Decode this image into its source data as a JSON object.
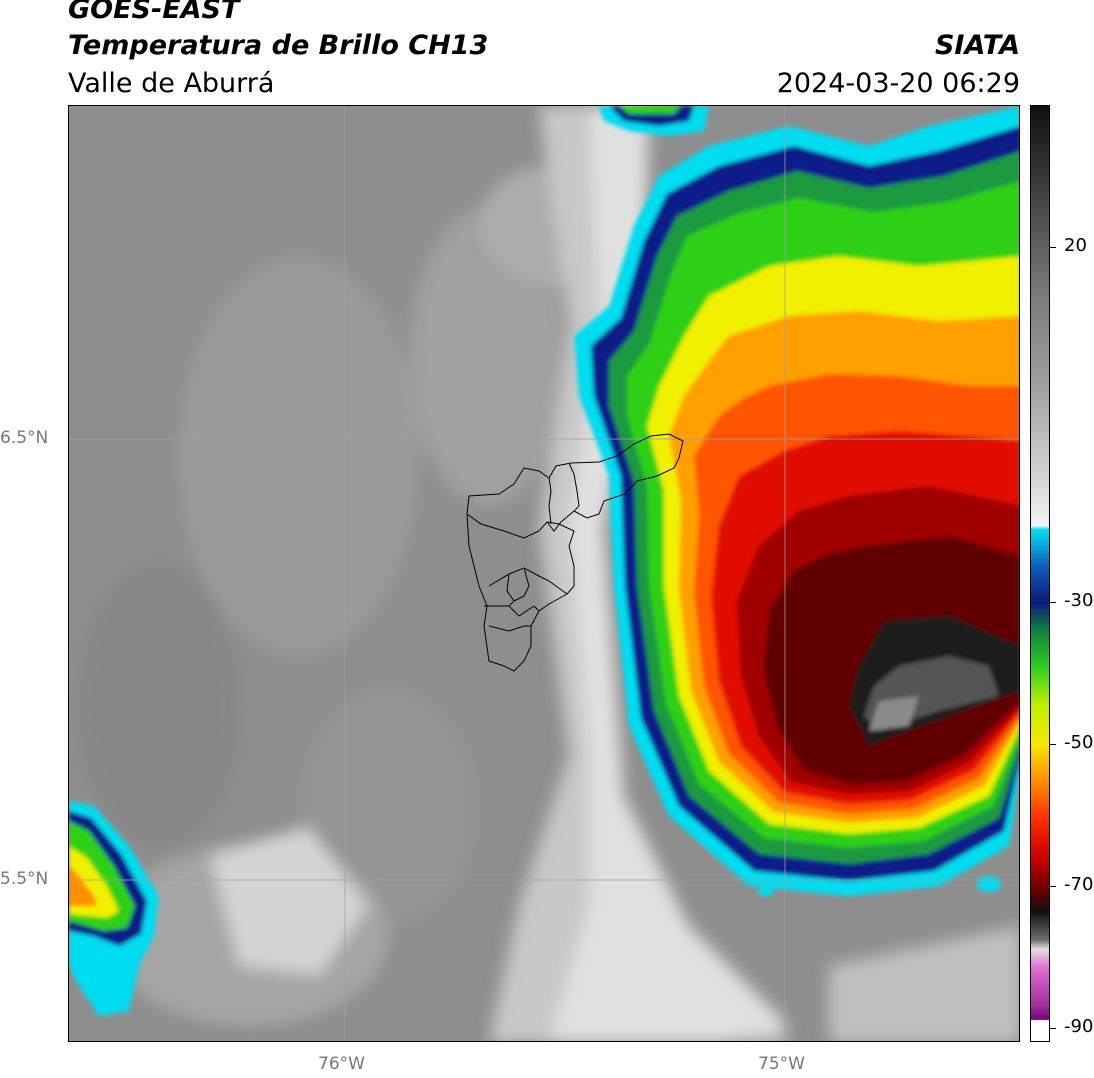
{
  "header": {
    "satellite": "GOES-EAST",
    "product": "Temperatura de Brillo CH13",
    "region": "Valle de Aburrá",
    "organization": "SIATA",
    "datetime": "2024-03-20 06:29"
  },
  "map": {
    "lat_labels": [
      "6.5°N",
      "5.5°N"
    ],
    "lon_labels": [
      "76°W",
      "75°W"
    ]
  },
  "colorbar": {
    "tick_labels": [
      "20",
      "-30",
      "-50",
      "-70",
      "-90"
    ],
    "tick_values": [
      20,
      -30,
      -50,
      -70,
      -90
    ],
    "range": [
      -92,
      40
    ],
    "colors": {
      "warm_gray": "#8a8a8a",
      "light_gray": "#e8e8e8",
      "cyan": "#00d8ee",
      "navy": "#0a1a7a",
      "green": "#22c41a",
      "yellow": "#f2f200",
      "orange": "#ff9000",
      "red": "#e01000",
      "dark_red": "#5a0000",
      "black": "#101010",
      "magenta": "#d040c0"
    }
  }
}
